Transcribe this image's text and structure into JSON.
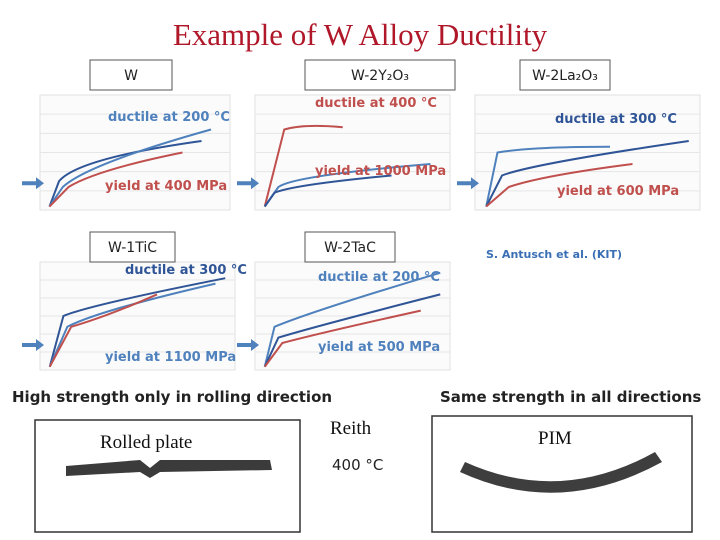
{
  "title": "Example of W Alloy Ductility",
  "panels": [
    {
      "label": "W",
      "annotations": [
        "ductile at 200 °C",
        "yield at 400 MPa"
      ]
    },
    {
      "label": "W-2Y₂O₃",
      "annotations": [
        "ductile at 400 °C",
        "yield at 1000 MPa"
      ]
    },
    {
      "label": "W-2La₂O₃",
      "annotations": [
        "ductile at 300 °C",
        "yield at 600 MPa"
      ]
    },
    {
      "label": "W-1TiC",
      "annotations": [
        "ductile at 300 °C",
        "yield at 1100 MPa"
      ]
    },
    {
      "label": "W-2TaC",
      "annotations": [
        "ductile at 200 °C",
        "yield at 500 MPa"
      ]
    }
  ],
  "credit": "S. Antusch et al. (KIT)",
  "captions": {
    "left": "High strength only in rolling direction",
    "right": "Same strength in all directions"
  },
  "photos": [
    {
      "label": "Rolled plate"
    },
    {
      "label": "PIM"
    }
  ],
  "middle": {
    "name": "Reith",
    "temperature": "400 °C"
  }
}
